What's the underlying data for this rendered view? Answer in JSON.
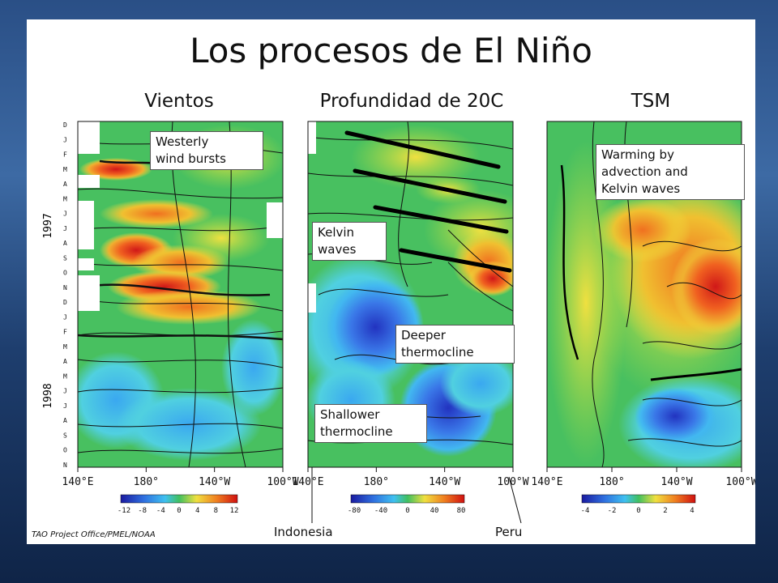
{
  "slide": {
    "title": "Los procesos de El Niño"
  },
  "chart_data": [
    {
      "type": "heatmap",
      "title": "Vientos",
      "x_ticks": [
        "140°E",
        "180°",
        "140°W",
        "100°W"
      ],
      "colorbar_ticks": [
        "-12",
        "-8",
        "-4",
        "0",
        "4",
        "8",
        "12"
      ],
      "y_year_labels": [
        "1997",
        "1998"
      ],
      "y_month_ticks": [
        "D",
        "J",
        "F",
        "M",
        "A",
        "M",
        "J",
        "J",
        "A",
        "S",
        "O",
        "N",
        "D",
        "J",
        "F",
        "M",
        "A",
        "M",
        "J",
        "J",
        "A",
        "S",
        "O",
        "N"
      ],
      "annotations": [
        "Westerly wind bursts"
      ]
    },
    {
      "type": "heatmap",
      "title": "Profundidad de 20C",
      "x_ticks": [
        "140°E",
        "180°",
        "140°W",
        "100°W"
      ],
      "colorbar_ticks": [
        "-80",
        "-40",
        "0",
        "40",
        "80"
      ],
      "annotations": [
        "Kelvin waves",
        "Deeper thermocline",
        "Shallower thermocline"
      ]
    },
    {
      "type": "heatmap",
      "title": "TSM",
      "x_ticks": [
        "140°E",
        "180°",
        "140°W",
        "100°W"
      ],
      "colorbar_ticks": [
        "-4",
        "-2",
        "0",
        "2",
        "4"
      ],
      "annotations": [
        "Warming by advection and Kelvin waves"
      ]
    }
  ],
  "labels": {
    "westerly_line1": "Westerly",
    "westerly_line2": "wind bursts",
    "kelvin_line1": "Kelvin",
    "kelvin_line2": "waves",
    "deeper_line1": "Deeper",
    "deeper_line2": "thermocline",
    "shallower_line1": "Shallower",
    "shallower_line2": "thermocline",
    "warming_line1": "Warming by",
    "warming_line2": "advection and",
    "warming_line3": "Kelvin waves"
  },
  "bottom": {
    "indonesia": "Indonesia",
    "peru": "Peru"
  },
  "credit": "TAO Project Office/PMEL/NOAA",
  "colors": {
    "cold": "#1a2fc0",
    "cool": "#3fa0f0",
    "neutral": "#38c060",
    "warm": "#f0e040",
    "hot": "#e03020"
  }
}
